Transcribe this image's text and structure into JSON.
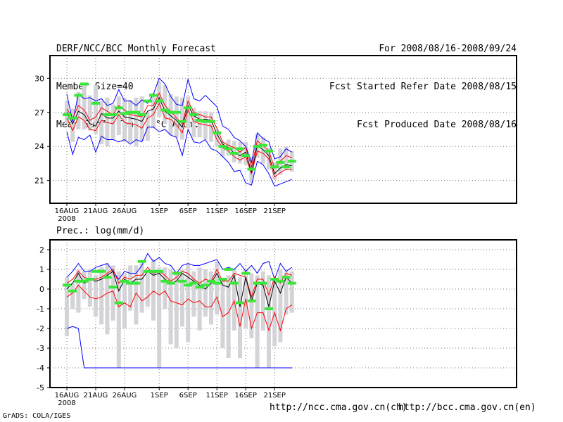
{
  "header": {
    "left": [
      "DERF/NCC/BCC Monthly Forecast",
      "Member Size=40",
      "Mean Surf. Temp.: °C Anom."
    ],
    "right": [
      "For 2008/08/16-2008/09/24",
      "Fcst Started Refer Date 2008/08/15",
      "Fcst Produced Date 2008/08/16"
    ]
  },
  "footer": {
    "grads": "GrADS: COLA/IGES",
    "ncc": "http://ncc.cma.gov.cn(ch)",
    "bcc": "http://bcc.cma.gov.cn(en)"
  },
  "colors": {
    "box": "#d3d3d8",
    "ref": "#38e838",
    "max": "#0000ff",
    "min": "#0000ff",
    "upper": "#ff0000",
    "lower": "#ff0000",
    "mean": "#000000"
  },
  "chart_data": [
    {
      "type": "box-plume",
      "title": "Mean Surf. Temp.: °C Anom.",
      "xticks": [
        "16AUG",
        "21AUG",
        "26AUG",
        "1SEP",
        "6SEP",
        "11SEP",
        "16SEP",
        "21SEP"
      ],
      "xtick_sub": "2008",
      "xtick_index": [
        0,
        5,
        10,
        16,
        21,
        26,
        31,
        36
      ],
      "days": 40,
      "ylim": [
        19.0,
        32.0
      ],
      "yticks": [
        21,
        24,
        27,
        30
      ],
      "max": [
        28.6,
        26.2,
        28.6,
        28.2,
        28.3,
        28.0,
        28.2,
        27.6,
        27.8,
        29.0,
        28.0,
        28.0,
        27.6,
        28.1,
        27.8,
        28.6,
        30.0,
        29.5,
        28.4,
        27.7,
        27.6,
        29.9,
        28.2,
        28.0,
        28.5,
        28.0,
        27.5,
        25.8,
        25.5,
        24.8,
        24.5,
        24.0,
        22.6,
        25.2,
        24.7,
        24.4,
        22.9,
        23.1,
        23.8,
        23.5
      ],
      "upper": [
        27.3,
        26.5,
        27.6,
        27.2,
        26.3,
        26.6,
        27.4,
        27.1,
        26.8,
        27.6,
        27.2,
        26.8,
        26.7,
        26.6,
        27.6,
        27.6,
        28.7,
        27.6,
        27.1,
        26.5,
        26.0,
        28.0,
        27.0,
        26.8,
        26.6,
        26.6,
        25.6,
        24.4,
        24.1,
        23.9,
        23.5,
        23.9,
        22.2,
        24.5,
        24.1,
        23.6,
        22.1,
        22.7,
        23.2,
        23.0
      ],
      "mean": [
        27.0,
        26.0,
        27.1,
        26.8,
        26.0,
        25.8,
        26.9,
        26.5,
        26.5,
        27.1,
        26.6,
        26.5,
        26.4,
        26.2,
        27.1,
        27.3,
        28.3,
        27.1,
        26.7,
        26.3,
        25.7,
        27.6,
        26.7,
        26.4,
        26.4,
        26.3,
        25.1,
        24.2,
        23.9,
        23.4,
        23.2,
        23.5,
        21.7,
        24.1,
        23.7,
        23.2,
        21.6,
        22.1,
        22.4,
        22.3
      ],
      "lower": [
        26.5,
        25.4,
        26.6,
        26.3,
        25.5,
        25.4,
        26.3,
        26.1,
        26.0,
        26.8,
        26.1,
        26.0,
        25.9,
        25.6,
        26.5,
        26.8,
        27.8,
        26.5,
        26.4,
        25.9,
        25.2,
        27.2,
        26.2,
        26.0,
        25.9,
        25.8,
        24.6,
        23.9,
        23.6,
        23.1,
        22.8,
        23.1,
        21.6,
        23.6,
        23.4,
        22.9,
        21.3,
        21.7,
        22.0,
        22.0
      ],
      "min": [
        25.3,
        23.3,
        24.8,
        24.6,
        25.0,
        23.5,
        24.9,
        24.6,
        24.6,
        24.4,
        24.6,
        24.2,
        24.6,
        24.4,
        25.7,
        25.7,
        25.3,
        25.5,
        25.0,
        24.8,
        23.2,
        25.5,
        24.4,
        24.3,
        24.6,
        23.8,
        23.6,
        23.1,
        22.6,
        21.8,
        21.9,
        20.8,
        20.6,
        22.7,
        22.4,
        21.6,
        20.5,
        20.7,
        20.9,
        21.1
      ],
      "box_hi": [
        28.0,
        27.3,
        28.8,
        29.5,
        28.5,
        29.4,
        28.0,
        28.3,
        27.7,
        28.4,
        28.3,
        28.1,
        28.3,
        28.4,
        27.0,
        28.7,
        29.7,
        29.4,
        28.6,
        28.4,
        28.3,
        28.4,
        27.4,
        27.1,
        27.1,
        27.0,
        25.5,
        24.4,
        24.6,
        24.5,
        24.4,
        24.4,
        23.1,
        25.1,
        24.8,
        23.9,
        22.6,
        23.8,
        24.0,
        23.6
      ],
      "box_lo": [
        26.0,
        24.4,
        25.5,
        25.5,
        25.4,
        25.1,
        24.2,
        24.0,
        24.6,
        25.0,
        24.4,
        24.3,
        24.0,
        24.5,
        24.5,
        25.6,
        26.6,
        26.0,
        25.0,
        24.8,
        24.6,
        25.6,
        24.8,
        24.8,
        24.6,
        24.4,
        24.0,
        23.1,
        23.2,
        22.6,
        22.5,
        22.4,
        20.8,
        23.0,
        22.5,
        22.0,
        21.1,
        21.5,
        21.9,
        21.8
      ],
      "ref": [
        26.8,
        26.5,
        28.5,
        29.5,
        null,
        27.8,
        null,
        26.8,
        26.8,
        27.4,
        26.9,
        27.0,
        27.0,
        26.8,
        28.0,
        28.5,
        28.0,
        27.2,
        27.0,
        27.0,
        26.2,
        27.4,
        26.8,
        26.3,
        26.2,
        26.2,
        25.2,
        24.0,
        23.8,
        23.4,
        23.8,
        23.2,
        22.0,
        24.0,
        24.1,
        23.6,
        22.2,
        22.6,
        22.2,
        22.7
      ]
    },
    {
      "type": "box-plume",
      "title": "Prec.: log(mm/d)",
      "xticks": [
        "16AUG",
        "21AUG",
        "26AUG",
        "1SEP",
        "6SEP",
        "11SEP",
        "16SEP",
        "21SEP"
      ],
      "xtick_sub": "2008",
      "xtick_index": [
        0,
        5,
        10,
        16,
        21,
        26,
        31,
        36
      ],
      "days": 40,
      "ylim": [
        -5,
        2.5
      ],
      "yticks": [
        -5,
        -4,
        -3,
        -2,
        -1,
        0,
        1,
        2
      ],
      "max": [
        0.6,
        0.9,
        1.3,
        0.9,
        0.9,
        1.1,
        1.2,
        1.3,
        0.9,
        0.5,
        0.9,
        0.8,
        0.8,
        1.2,
        1.8,
        1.4,
        1.6,
        1.3,
        1.2,
        0.8,
        1.2,
        1.3,
        1.2,
        1.2,
        1.3,
        1.4,
        1.5,
        1.0,
        1.1,
        1.0,
        1.3,
        0.9,
        1.2,
        0.8,
        1.3,
        1.4,
        0.5,
        1.3,
        0.9,
        1.1
      ],
      "upper": [
        0.3,
        0.5,
        0.9,
        0.6,
        0.5,
        0.5,
        0.6,
        0.8,
        1.0,
        0.3,
        0.6,
        0.5,
        0.7,
        0.7,
        1.1,
        0.8,
        0.9,
        0.7,
        0.4,
        0.6,
        0.9,
        0.8,
        0.5,
        0.3,
        0.5,
        0.4,
        1.0,
        0.4,
        0.4,
        0.8,
        0.7,
        0.6,
        -0.4,
        0.5,
        0.5,
        -0.3,
        0.6,
        0.3,
        0.8,
        0.7
      ],
      "mean": [
        0.0,
        0.3,
        0.8,
        0.3,
        0.5,
        0.4,
        0.5,
        0.7,
        0.9,
        -0.1,
        0.5,
        0.3,
        0.5,
        0.5,
        0.9,
        0.7,
        0.8,
        0.5,
        0.3,
        0.4,
        0.8,
        0.6,
        0.4,
        0.2,
        0.0,
        0.3,
        0.8,
        0.2,
        0.1,
        0.7,
        -0.9,
        0.6,
        -0.6,
        0.3,
        0.2,
        -0.9,
        0.4,
        -0.2,
        0.6,
        0.3
      ],
      "lower": [
        -0.4,
        -0.2,
        0.2,
        -0.1,
        -0.4,
        -0.5,
        -0.4,
        -0.2,
        -0.1,
        -0.9,
        -0.7,
        -0.9,
        -0.2,
        -0.6,
        -0.4,
        -0.1,
        -0.3,
        -0.1,
        -0.6,
        -0.7,
        -0.8,
        -0.5,
        -0.7,
        -0.6,
        -0.9,
        -0.9,
        -0.4,
        -1.4,
        -1.2,
        -0.6,
        -1.9,
        -0.5,
        -2.0,
        -1.2,
        -1.2,
        -2.1,
        -1.2,
        -2.1,
        -1.0,
        -0.8
      ],
      "min": [
        -2.0,
        -1.9,
        -2.0,
        -4.0,
        -4.0,
        -4.0,
        -4.0,
        -4.0,
        -4.0,
        -4.0,
        -4.0,
        -4.0,
        -4.0,
        -4.0,
        -4.0,
        -4.0,
        -4.0,
        -4.0,
        -4.0,
        -4.0,
        -4.0,
        -4.0,
        -4.0,
        -4.0,
        -4.0,
        -4.0,
        -4.0,
        -4.0,
        -4.0,
        -4.0,
        -4.0,
        -4.0,
        -4.0,
        -4.0,
        -4.0,
        -4.0,
        -4.0,
        -4.0,
        -4.0,
        -4.0
      ],
      "box_hi": [
        0.6,
        0.3,
        1.0,
        0.9,
        1.0,
        0.7,
        1.1,
        1.3,
        1.2,
        0.9,
        0.8,
        1.2,
        1.2,
        1.3,
        0.8,
        1.5,
        1.1,
        1.1,
        1.0,
        0.9,
        1.0,
        1.3,
        0.9,
        1.1,
        1.0,
        0.9,
        1.4,
        0.5,
        0.7,
        1.0,
        0.6,
        1.0,
        0.8,
        0.7,
        0.9,
        0.7,
        0.5,
        1.0,
        0.9,
        0.9
      ],
      "box_lo": [
        -2.4,
        -1.0,
        -1.2,
        -0.5,
        -0.9,
        -1.4,
        -1.8,
        -2.3,
        -1.6,
        -4.0,
        -2.0,
        -1.1,
        -1.8,
        -1.2,
        -0.9,
        -1.6,
        -4.0,
        -1.0,
        -2.8,
        -3.0,
        -1.9,
        -2.7,
        -1.4,
        -2.1,
        -1.4,
        -1.8,
        -1.3,
        -3.0,
        -3.5,
        -2.1,
        -3.5,
        -2.0,
        -2.5,
        -4.0,
        -2.1,
        -4.0,
        -2.9,
        -2.7,
        -1.3,
        -1.2
      ],
      "ref": [
        0.2,
        -0.1,
        0.4,
        0.4,
        0.5,
        0.9,
        0.9,
        0.6,
        0.1,
        -0.7,
        0.4,
        0.3,
        0.3,
        1.4,
        0.9,
        0.9,
        0.9,
        0.4,
        0.3,
        0.8,
        0.4,
        0.2,
        0.3,
        0.1,
        0.2,
        0.4,
        0.3,
        0.5,
        1.0,
        0.3,
        -0.7,
        0.8,
        -0.6,
        0.3,
        0.3,
        -1.0,
        0.5,
        0.4,
        0.6,
        0.3
      ]
    }
  ]
}
